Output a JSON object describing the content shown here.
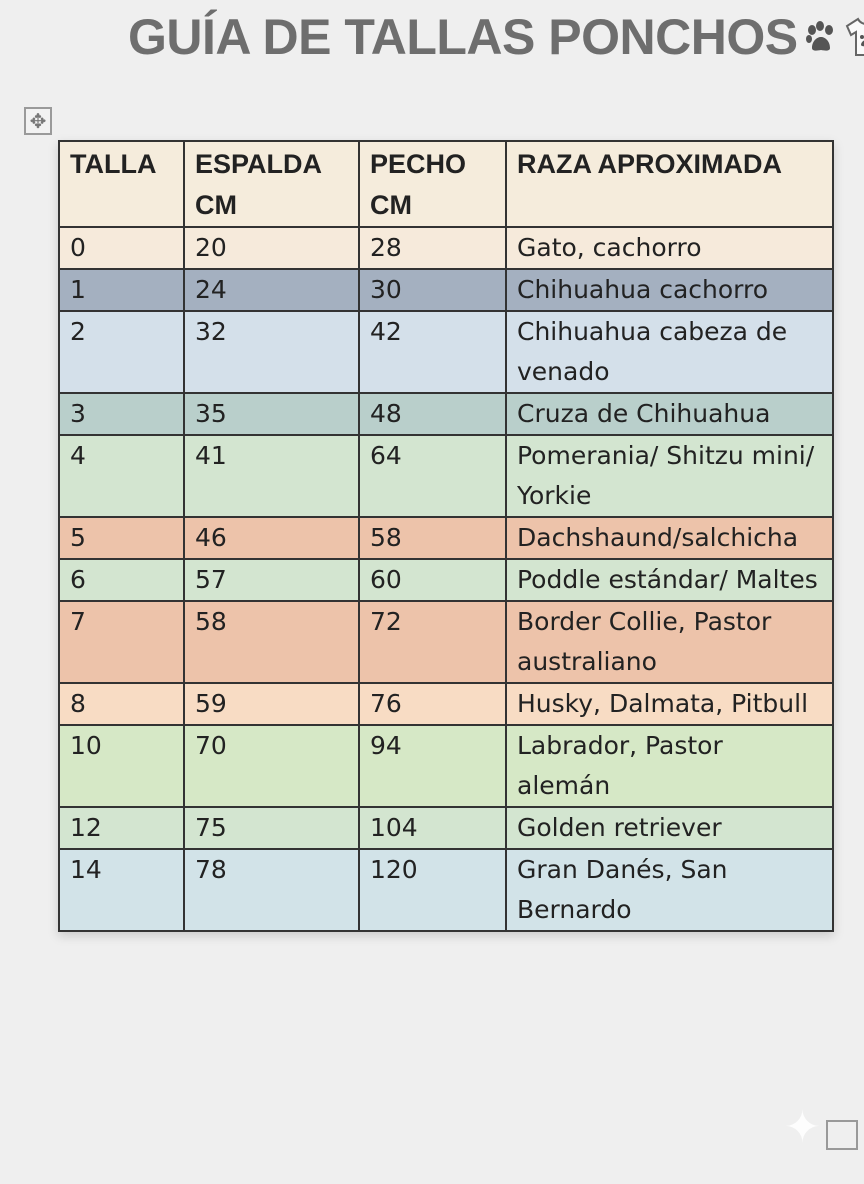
{
  "title": "GUÍA DE TALLAS PONCHOS",
  "title_icons": [
    "paw-icon",
    "tshirt-icon"
  ],
  "table": {
    "headers": [
      "TALLA",
      "ESPALDA CM",
      "PECHO CM",
      "RAZA APROXIMADA"
    ],
    "header_color": "#f5ecdc",
    "rows": [
      {
        "talla": "0",
        "espalda": "20",
        "pecho": "28",
        "raza": "Gato, cachorro",
        "color": "#f6eadb"
      },
      {
        "talla": "1",
        "espalda": "24",
        "pecho": "30",
        "raza": "Chihuahua cachorro",
        "color": "#a4b0c0"
      },
      {
        "talla": "2",
        "espalda": "32",
        "pecho": "42",
        "raza": "Chihuahua cabeza de venado",
        "color": "#d4e0ea"
      },
      {
        "talla": "3",
        "espalda": "35",
        "pecho": "48",
        "raza": "Cruza de Chihuahua",
        "color": "#b9cfcb"
      },
      {
        "talla": "4",
        "espalda": "41",
        "pecho": "64",
        "raza": "Pomerania/ Shitzu mini/ Yorkie",
        "color": "#d3e5d0"
      },
      {
        "talla": "5",
        "espalda": "46",
        "pecho": "58",
        "raza": "Dachshaund/salchicha",
        "color": "#edc3aa"
      },
      {
        "talla": "6",
        "espalda": "57",
        "pecho": "60",
        "raza": "Poddle estándar/ Maltes",
        "color": "#d3e5d0"
      },
      {
        "talla": "7",
        "espalda": "58",
        "pecho": "72",
        "raza": "Border Collie, Pastor australiano",
        "color": "#edc3aa"
      },
      {
        "talla": "8",
        "espalda": "59",
        "pecho": "76",
        "raza": "Husky, Dalmata, Pitbull",
        "color": "#f8dcc4"
      },
      {
        "talla": "10",
        "espalda": "70",
        "pecho": "94",
        "raza": "Labrador, Pastor alemán",
        "color": "#d6e8c6"
      },
      {
        "talla": "12",
        "espalda": "75",
        "pecho": "104",
        "raza": "Golden retriever",
        "color": "#d3e5d0"
      },
      {
        "talla": "14",
        "espalda": "78",
        "pecho": "120",
        "raza": "Gran Danés, San Bernardo",
        "color": "#d2e3e8"
      }
    ]
  }
}
